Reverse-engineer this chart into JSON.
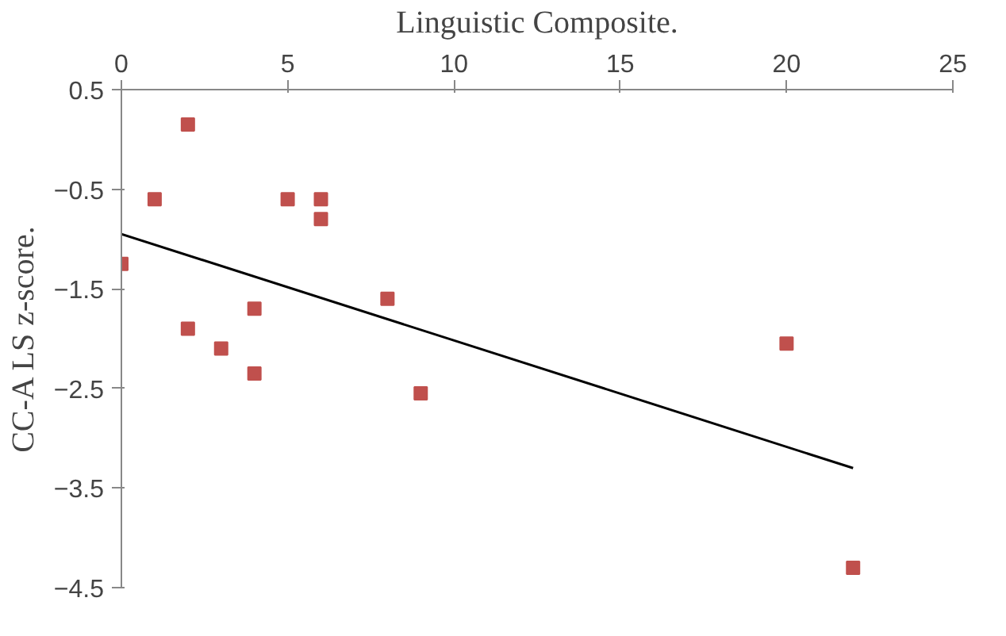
{
  "chart_data": {
    "type": "scatter",
    "xlabel": "Linguistic Composite.",
    "ylabel": "CC-A LS z-score.",
    "xlim": [
      0,
      25
    ],
    "xticks": [
      0,
      5,
      10,
      15,
      20,
      25
    ],
    "ylim": [
      -4.5,
      0.5
    ],
    "yticks": [
      -4.5,
      -3.5,
      -2.5,
      -1.5,
      -0.5,
      0.5
    ],
    "grid": false,
    "series": [
      {
        "color": "#c0504d",
        "marker": "square",
        "x": [
          0,
          1,
          2,
          2,
          3,
          4,
          4,
          5,
          6,
          6,
          8,
          9,
          20,
          22
        ],
        "values": [
          -1.25,
          -0.6,
          0.15,
          -1.9,
          -2.1,
          -1.7,
          -2.35,
          -0.6,
          -0.6,
          -0.8,
          -1.6,
          -2.55,
          -2.05,
          -4.3
        ]
      },
      {
        "type": "line",
        "color": "#000000",
        "x": [
          0,
          22
        ],
        "values": [
          -0.95,
          -3.3
        ]
      }
    ]
  }
}
